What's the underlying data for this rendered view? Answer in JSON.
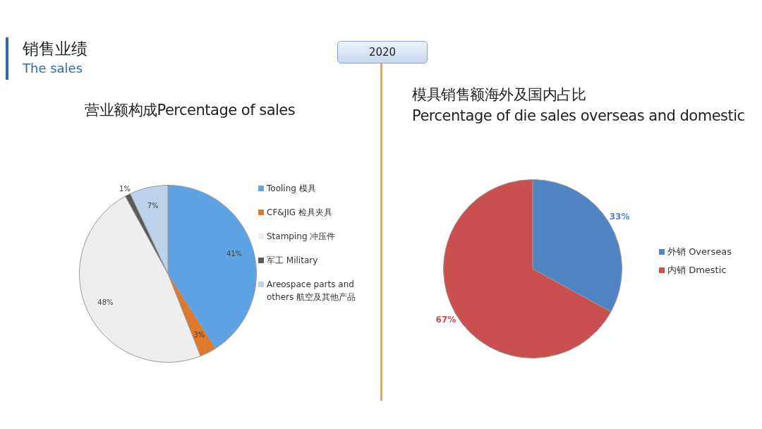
{
  "chart_data": [
    {
      "type": "pie",
      "title": "营业额构成Percentage of sales",
      "annotations": [
        "销售业绩",
        "The sales",
        "2020"
      ],
      "categories": [
        "Tooling 模具",
        "CF&JIG 检具夹具",
        "Stamping 冲压件",
        "军工 Military",
        "Areospace parts and others 航空及其他产品"
      ],
      "values": [
        41,
        3,
        48,
        1,
        7
      ],
      "colors": [
        "#5ea3e3",
        "#e0782c",
        "#eeeeee",
        "#5a5a5a",
        "#bed2ea"
      ],
      "value_labels": [
        "41%",
        "3%",
        "48%",
        "1%",
        "7%"
      ],
      "legend": "right"
    },
    {
      "type": "pie",
      "title": "模具销售额海外及国内占比",
      "subtitle": "Percentage of die sales overseas and domestic",
      "categories": [
        "外销 Overseas",
        "内销 Dmestic"
      ],
      "values": [
        33,
        67
      ],
      "colors": [
        "#4f83c4",
        "#c9504e"
      ],
      "value_labels": [
        "33%",
        "67%"
      ],
      "legend": "right"
    }
  ]
}
